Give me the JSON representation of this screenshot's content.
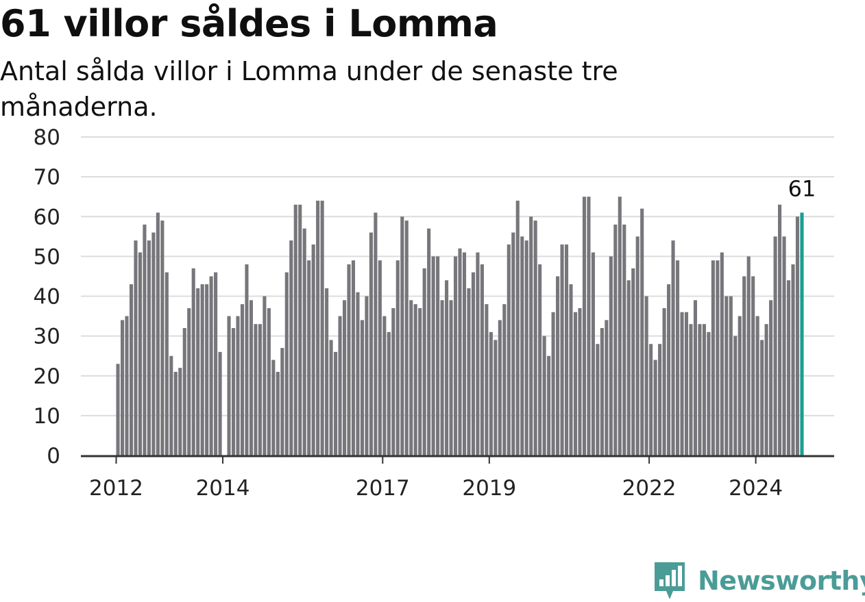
{
  "header": {
    "title": "61 villor såldes i Lomma",
    "subtitle": "Antal sålda villor i Lomma under de senaste tre månaderna."
  },
  "logo": {
    "name": "Newsworthy",
    "icon": "newsworthy-logo-icon",
    "color": "#4b9c97"
  },
  "colors": {
    "bar": "#76767b",
    "highlight": "#1a9e93",
    "grid": "#dcdcdc",
    "axis": "#333333"
  },
  "chart_data": {
    "type": "bar",
    "title": "61 villor såldes i Lomma",
    "subtitle": "Antal sålda villor i Lomma under de senaste tre månaderna.",
    "xlabel": "",
    "ylabel": "",
    "ylim": [
      0,
      80
    ],
    "yticks": [
      0,
      10,
      20,
      30,
      40,
      50,
      60,
      70,
      80
    ],
    "x_tick_labels": [
      "2012",
      "2014",
      "2017",
      "2019",
      "2022",
      "2024"
    ],
    "x_start": "2012-01",
    "grid": true,
    "highlight": {
      "index": 154,
      "label": "61"
    },
    "values": [
      23,
      34,
      35,
      43,
      54,
      51,
      58,
      54,
      56,
      61,
      59,
      46,
      25,
      21,
      22,
      32,
      37,
      47,
      42,
      43,
      43,
      45,
      46,
      26,
      0,
      35,
      32,
      35,
      38,
      48,
      39,
      33,
      33,
      40,
      37,
      24,
      21,
      27,
      46,
      54,
      63,
      63,
      57,
      49,
      53,
      64,
      64,
      42,
      29,
      26,
      35,
      39,
      48,
      49,
      41,
      34,
      40,
      56,
      61,
      49,
      35,
      31,
      37,
      49,
      60,
      59,
      39,
      38,
      37,
      47,
      57,
      50,
      50,
      39,
      44,
      39,
      50,
      52,
      51,
      42,
      46,
      51,
      48,
      38,
      31,
      29,
      34,
      38,
      53,
      56,
      64,
      55,
      54,
      60,
      59,
      48,
      30,
      25,
      36,
      45,
      53,
      53,
      43,
      36,
      37,
      65,
      65,
      51,
      28,
      32,
      34,
      50,
      58,
      65,
      58,
      44,
      47,
      55,
      62,
      40,
      28,
      24,
      28,
      37,
      43,
      54,
      49,
      36,
      36,
      33,
      39,
      33,
      33,
      31,
      49,
      49,
      51,
      40,
      40,
      30,
      35,
      45,
      50,
      45,
      35,
      29,
      33,
      39,
      55,
      63,
      55,
      44,
      48,
      60,
      61
    ]
  }
}
